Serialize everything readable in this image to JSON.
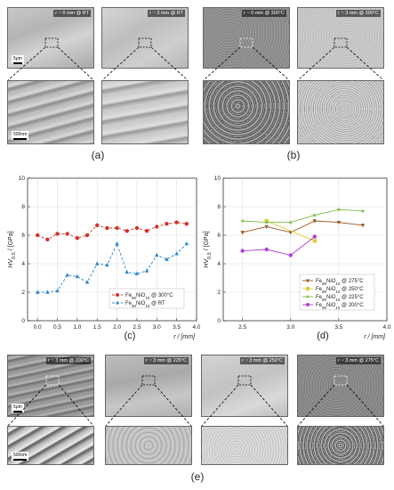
{
  "figure": {
    "captions": {
      "a": "(a)",
      "b": "(b)",
      "e": "(e)"
    },
    "panel_a": {
      "left_label": "r ~ 0 mm @ RT",
      "right_label": "r ~ 3 mm @ RT",
      "scale_top": "5μm",
      "scale_bottom": "500nm"
    },
    "panel_b": {
      "left_label": "r ~ 0 mm @ 300°C",
      "right_label": "r ~ 3 mm @ 300°C"
    },
    "panel_e": {
      "labels": [
        "r ~ 3 mm @ 200°C",
        "r ~ 3 mm @ 225°C",
        "r ~ 3 mm @ 250°C",
        "r ~ 3 mm @ 275°C"
      ],
      "scale_top": "5μm",
      "scale_bottom": "500nm"
    }
  },
  "chart_data": [
    {
      "type": "line",
      "panel_label": "(c)",
      "xlabel": "r / [mm]",
      "ylabel": "HV0.5 / [GPa]",
      "xlim": [
        -0.25,
        4.0
      ],
      "ylim": [
        0,
        10
      ],
      "xticks": [
        "0.0",
        "0.5",
        "1.0",
        "1.5",
        "2.0",
        "2.5",
        "3.0",
        "3.5",
        "4.0"
      ],
      "yticks": [
        "0",
        "2",
        "4",
        "6",
        "8",
        "10"
      ],
      "grid": true,
      "legend_position": "bottom-right",
      "series": [
        {
          "name": "Fe90NiO10 @ 300°C",
          "color": "#d0342c",
          "marker": "circle",
          "dash": "dashed",
          "x": [
            0.0,
            0.25,
            0.5,
            0.75,
            1.0,
            1.25,
            1.5,
            1.75,
            2.0,
            2.25,
            2.5,
            2.75,
            3.0,
            3.25,
            3.5,
            3.75
          ],
          "y": [
            6.0,
            5.7,
            6.1,
            6.1,
            5.8,
            6.0,
            6.7,
            6.5,
            6.5,
            6.3,
            6.5,
            6.3,
            6.6,
            6.8,
            6.9,
            6.8
          ]
        },
        {
          "name": "Fe90NiO10 @ RT",
          "color": "#2f86c6",
          "marker": "triangle",
          "dash": "dashed",
          "x": [
            0.0,
            0.25,
            0.5,
            0.75,
            1.0,
            1.25,
            1.5,
            1.75,
            2.0,
            2.25,
            2.5,
            2.75,
            3.0,
            3.25,
            3.5,
            3.75
          ],
          "y": [
            2.0,
            2.0,
            2.1,
            3.2,
            3.1,
            2.7,
            4.0,
            3.9,
            5.4,
            3.4,
            3.3,
            3.5,
            4.6,
            4.3,
            4.7,
            5.4
          ]
        }
      ]
    },
    {
      "type": "line",
      "panel_label": "(d)",
      "xlabel": "r / [mm]",
      "ylabel": "HV0.5 / [GPa]",
      "xlim": [
        2.3,
        4.0
      ],
      "ylim": [
        0,
        10
      ],
      "xticks": [
        "2.5",
        "3.0",
        "3.5",
        "4.0"
      ],
      "yticks": [
        "0",
        "2",
        "4",
        "6",
        "8",
        "10"
      ],
      "grid": true,
      "legend_position": "bottom-right",
      "series": [
        {
          "name": "Fe90NiO10 @ 275°C",
          "color": "#9b5a28",
          "marker": "triangle-down",
          "dash": "solid",
          "x": [
            2.5,
            2.75,
            3.0,
            3.25,
            3.5,
            3.75
          ],
          "y": [
            6.2,
            6.6,
            6.2,
            7.0,
            6.9,
            6.7
          ]
        },
        {
          "name": "Fe90NiO10 @ 250°C",
          "color": "#e3cc3a",
          "marker": "square",
          "dash": "solid",
          "x": [
            2.75,
            3.25
          ],
          "y": [
            7.0,
            5.6
          ]
        },
        {
          "name": "Fe90NiO10 @ 225°C",
          "color": "#7bbf44",
          "marker": "star",
          "dash": "solid",
          "x": [
            2.5,
            2.75,
            3.0,
            3.25,
            3.5,
            3.75
          ],
          "y": [
            7.0,
            6.9,
            6.9,
            7.4,
            7.8,
            7.7
          ]
        },
        {
          "name": "Fe90NiO10 @ 200°C",
          "color": "#b13fd6",
          "marker": "circle",
          "dash": "solid",
          "x": [
            2.5,
            2.75,
            3.0,
            3.25
          ],
          "y": [
            4.9,
            5.0,
            4.6,
            5.9
          ]
        }
      ]
    }
  ]
}
